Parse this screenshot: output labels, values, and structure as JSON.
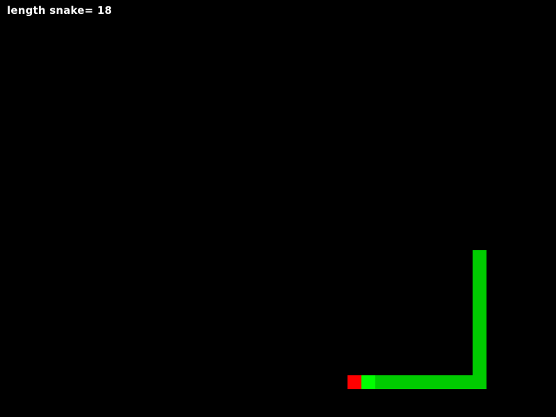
{
  "hud": {
    "score_text": "length snake= 18"
  },
  "colors": {
    "background": "#000000",
    "text": "#ffffff",
    "snake_body": "#00cc00",
    "snake_head": "#00ff00",
    "food": "#ff0000"
  }
}
